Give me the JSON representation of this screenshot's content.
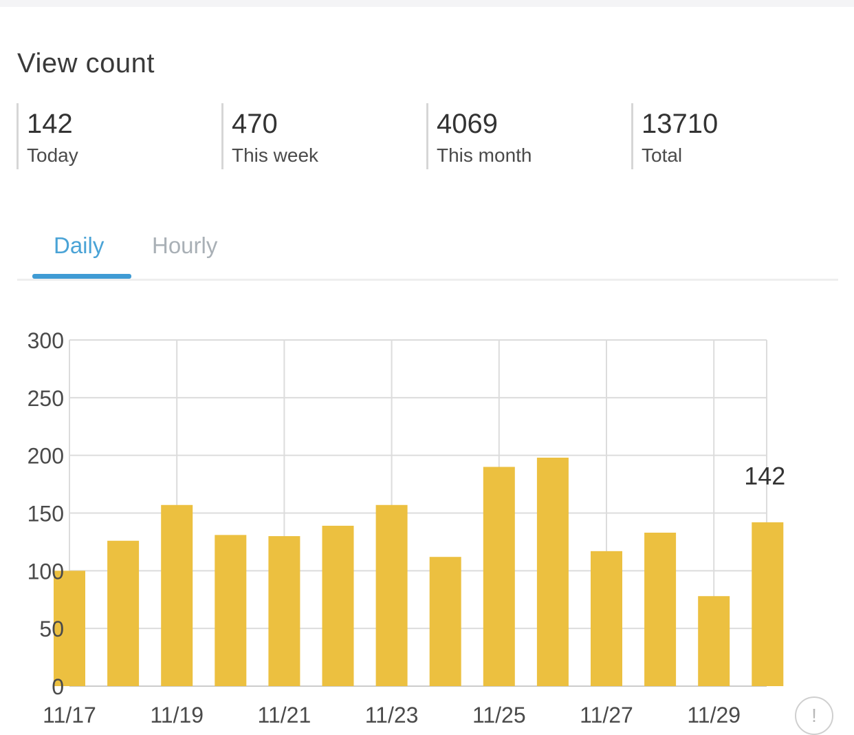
{
  "title": "View count",
  "stats": [
    {
      "value": "142",
      "label": "Today"
    },
    {
      "value": "470",
      "label": "This week"
    },
    {
      "value": "4069",
      "label": "This month"
    },
    {
      "value": "13710",
      "label": "Total"
    }
  ],
  "tabs": [
    {
      "label": "Daily",
      "active": true
    },
    {
      "label": "Hourly",
      "active": false
    }
  ],
  "info_icon": "info-icon",
  "chart_data": {
    "type": "bar",
    "categories": [
      "11/17",
      "11/18",
      "11/19",
      "11/20",
      "11/21",
      "11/22",
      "11/23",
      "11/24",
      "11/25",
      "11/26",
      "11/27",
      "11/28",
      "11/29",
      "11/30"
    ],
    "x_tick_labels": [
      "11/17",
      "11/19",
      "11/21",
      "11/23",
      "11/25",
      "11/27",
      "11/29"
    ],
    "values": [
      100,
      126,
      157,
      131,
      130,
      139,
      157,
      112,
      190,
      198,
      117,
      133,
      78,
      142
    ],
    "y_ticks": [
      0,
      50,
      100,
      150,
      200,
      250,
      300
    ],
    "ylim": [
      0,
      300
    ],
    "data_labels": [
      {
        "category": "11/30",
        "value": "142"
      }
    ],
    "grid": true,
    "bar_color": "#ecc040",
    "grid_color": "#dcdcdc",
    "title": "",
    "xlabel": "",
    "ylabel": ""
  }
}
